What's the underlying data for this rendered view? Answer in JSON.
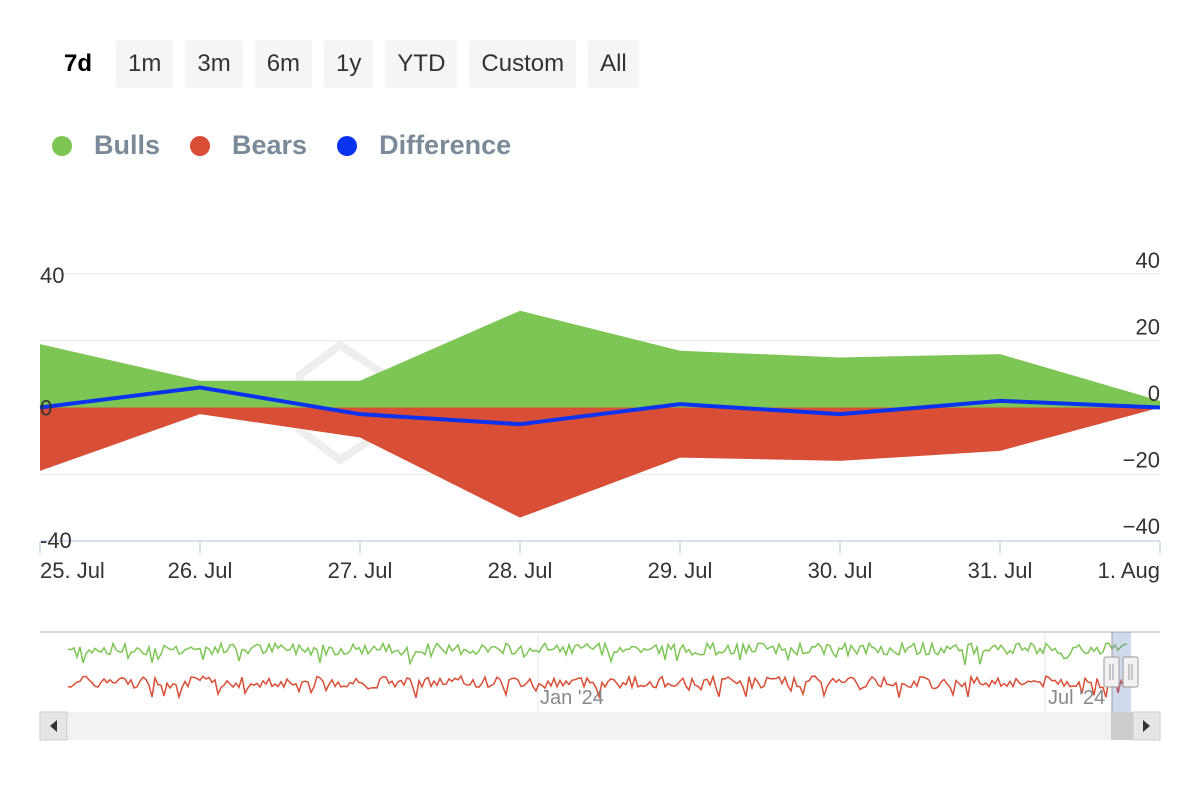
{
  "range_selector": {
    "buttons": [
      "7d",
      "1m",
      "3m",
      "6m",
      "1y",
      "YTD",
      "Custom",
      "All"
    ],
    "selected": "7d"
  },
  "legend": {
    "items": [
      {
        "name": "Bulls",
        "color": "#7dc655"
      },
      {
        "name": "Bears",
        "color": "#d94e36"
      },
      {
        "name": "Difference",
        "color": "#0a33f0"
      }
    ]
  },
  "chart_data": {
    "type": "area",
    "categories": [
      "25. Jul",
      "26. Jul",
      "27. Jul",
      "28. Jul",
      "29. Jul",
      "30. Jul",
      "31. Jul",
      "1. Aug"
    ],
    "series": [
      {
        "name": "Bulls",
        "type": "area",
        "color": "#7dc655",
        "values": [
          19,
          8,
          8,
          29,
          17,
          15,
          16,
          2
        ]
      },
      {
        "name": "Bears",
        "type": "area",
        "color": "#d94e36",
        "values": [
          -19,
          -2,
          -9,
          -33,
          -15,
          -16,
          -13,
          0
        ]
      },
      {
        "name": "Difference",
        "type": "line",
        "color": "#0a33f0",
        "values": [
          0,
          6,
          -2,
          -5,
          1,
          -2,
          2,
          0
        ]
      }
    ],
    "y_left": {
      "ticks": [
        "40",
        "0",
        "-40"
      ],
      "range": [
        -40,
        40
      ]
    },
    "y_right": {
      "ticks": [
        "40",
        "20",
        "0",
        "−20",
        "−40"
      ],
      "range": [
        -40,
        40
      ]
    },
    "grid": true,
    "navigator": {
      "labels": [
        "Jan '24",
        "Jul '24"
      ]
    }
  }
}
